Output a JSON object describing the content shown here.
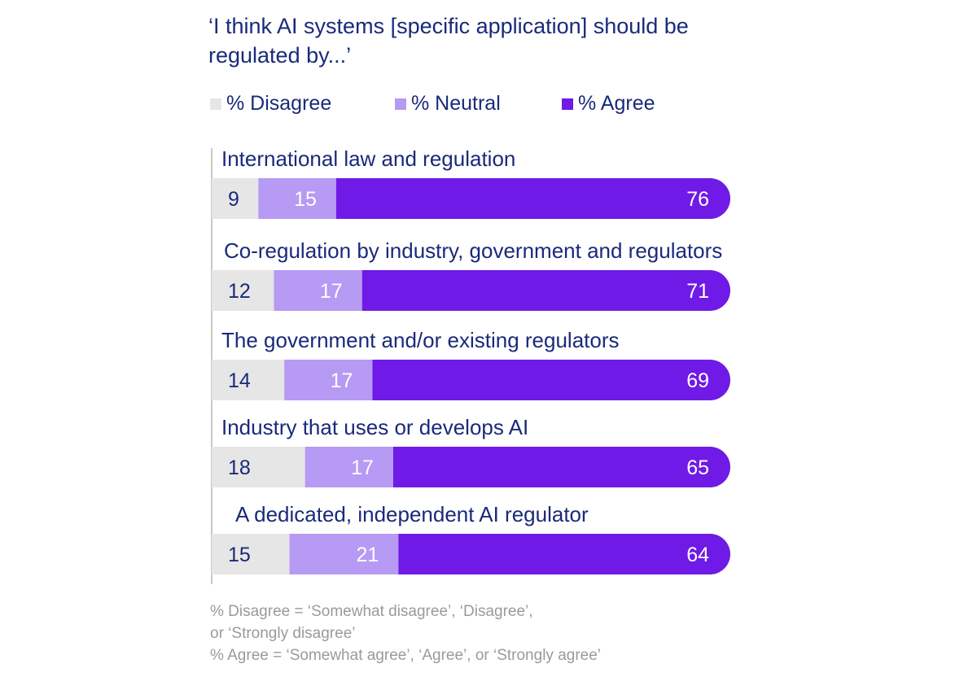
{
  "chart_data": {
    "type": "bar",
    "orientation": "horizontal",
    "stacked": true,
    "title": "‘I think AI systems [specific application] should be regulated by...’",
    "categories": [
      "International law and regulation",
      "Co-regulation by industry, government and regulators",
      "The government and/or existing regulators",
      "Industry that uses or develops AI",
      "A dedicated, independent AI regulator"
    ],
    "series": [
      {
        "name": "% Disagree",
        "color": "#e6e6e6",
        "label_color": "#1a2a7a",
        "values": [
          9,
          12,
          14,
          18,
          15
        ]
      },
      {
        "name": "% Neutral",
        "color": "#b69af4",
        "label_color": "#ffffff",
        "values": [
          15,
          17,
          17,
          17,
          21
        ]
      },
      {
        "name": "% Agree",
        "color": "#6f1ae6",
        "label_color": "#ffffff",
        "values": [
          76,
          71,
          69,
          65,
          64
        ]
      }
    ],
    "xlim": [
      0,
      100
    ],
    "legend_position": "top-left",
    "grid": false
  },
  "footnote": [
    "% Disagree = ‘Somewhat disagree’, ‘Disagree’,",
    "or ‘Strongly disagree’",
    "% Agree = ‘Somewhat agree’, ‘Agree’, or ‘Strongly agree’"
  ],
  "colors": {
    "text": "#1a2a7a",
    "footnote": "#9a9a9a",
    "axis": "#c8c8c8"
  }
}
